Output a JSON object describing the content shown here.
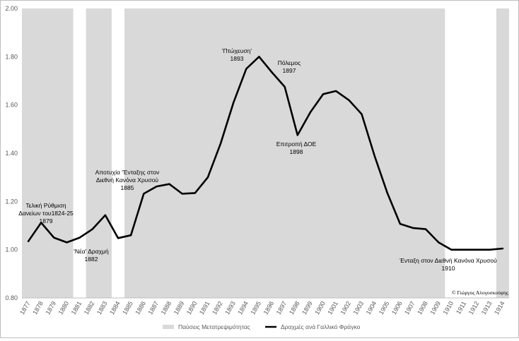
{
  "chart_data": {
    "type": "line",
    "title": "",
    "xlabel": "",
    "ylabel": "",
    "ylim": [
      0.8,
      2.0
    ],
    "yticks": [
      "2.00",
      "1.80",
      "1.60",
      "1.40",
      "1.20",
      "1.00",
      "0.80"
    ],
    "x": [
      "1877",
      "1878",
      "1879",
      "1880",
      "1881",
      "1882",
      "1883",
      "1884",
      "1885",
      "1886",
      "1887",
      "1888",
      "1889",
      "1890",
      "1891",
      "1892",
      "1893",
      "1894",
      "1895",
      "1896",
      "1897",
      "1898",
      "1899",
      "1900",
      "1901",
      "1902",
      "1903",
      "1904",
      "1905",
      "1906",
      "1907",
      "1908",
      "1909",
      "1910",
      "1911",
      "1912",
      "1913",
      "1914"
    ],
    "series": [
      {
        "name": "Δραχμές ανά Γαλλικό Φράγκο",
        "color": "#000000",
        "values": [
          1.035,
          1.112,
          1.05,
          1.03,
          1.05,
          1.085,
          1.143,
          1.048,
          1.06,
          1.232,
          1.262,
          1.272,
          1.232,
          1.235,
          1.3,
          1.44,
          1.61,
          1.75,
          1.8,
          1.735,
          1.675,
          1.475,
          1.57,
          1.645,
          1.658,
          1.62,
          1.562,
          1.39,
          1.235,
          1.107,
          1.09,
          1.085,
          1.03,
          1.0,
          1.0,
          1.0,
          1.0,
          1.005
        ]
      }
    ],
    "shaded_periods": {
      "name": "Παύσεις Μετατρεψιμότητας",
      "color": "#d9d9d9",
      "ranges": [
        [
          "1877",
          "1880"
        ],
        [
          "1882",
          "1883"
        ],
        [
          "1885",
          "1909"
        ],
        [
          "1914",
          "1914"
        ]
      ]
    },
    "annotations": [
      {
        "id": "a1879",
        "lines": [
          "Τελική Ρύθμιση",
          "Δανείων του1824-25",
          "1879"
        ]
      },
      {
        "id": "a1882",
        "lines": [
          "'Νέα' Δραχμή",
          "1882"
        ]
      },
      {
        "id": "a1885",
        "lines": [
          "Αποτυχία 'Ένταξης στον",
          "Διεθνή Κανόνα Χρυσού",
          "1885"
        ]
      },
      {
        "id": "a1893",
        "lines": [
          "'Πτώχευση'",
          "1893"
        ]
      },
      {
        "id": "a1897",
        "lines": [
          "Πόλεμος",
          "1897"
        ]
      },
      {
        "id": "a1898",
        "lines": [
          "Επιτροπή ΔΟΕ",
          "1898"
        ]
      },
      {
        "id": "a1910",
        "lines": [
          "Ένταξη στον Διεθνή Κανόνα Χρυσού",
          "1910"
        ]
      }
    ],
    "credit": "© Γιώργος Αλογοσκούφης",
    "grid": false,
    "legend_position": "bottom"
  }
}
